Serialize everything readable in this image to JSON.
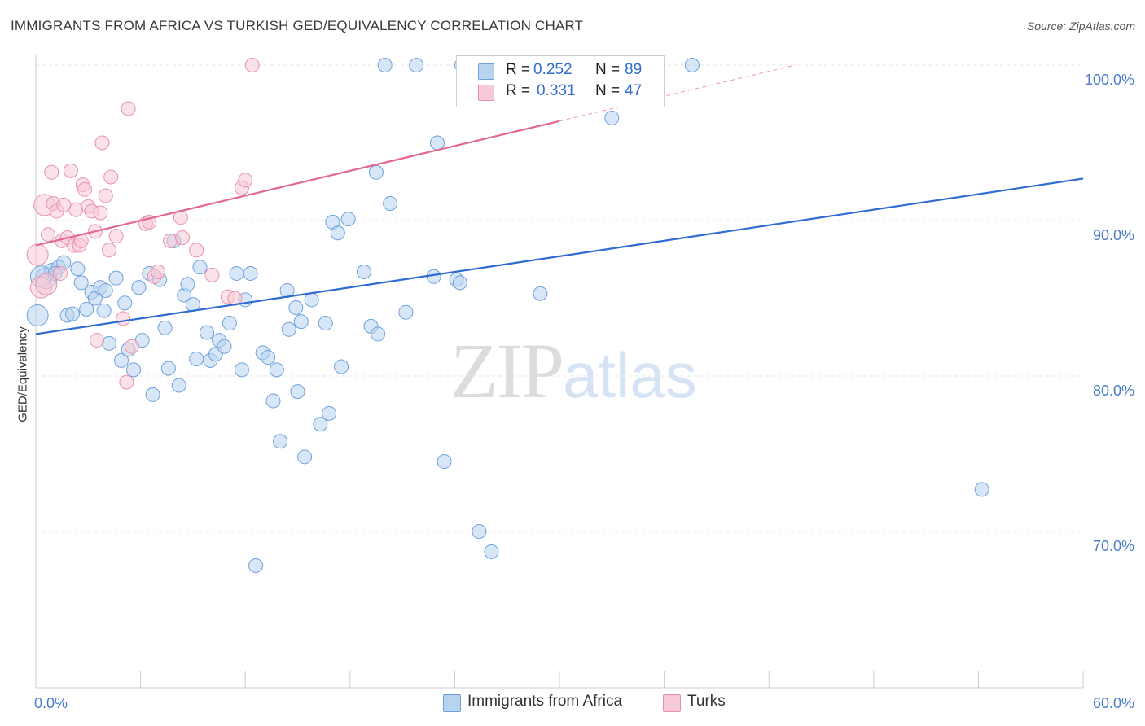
{
  "header": {
    "title": "IMMIGRANTS FROM AFRICA VS TURKISH GED/EQUIVALENCY CORRELATION CHART",
    "source": "Source: ZipAtlas.com"
  },
  "watermark": {
    "zip": "ZIP",
    "atlas": "atlas"
  },
  "legend": {
    "rows": [
      {
        "r_label": "R =",
        "r_value": "0.252",
        "n_label": "N =",
        "n_value": "89",
        "color": "#b8d3f0",
        "border": "#6fa0dc"
      },
      {
        "r_label": "R =",
        "r_value": "0.331",
        "n_label": "N =",
        "n_value": "47",
        "color": "#f8c9d6",
        "border": "#e891ad"
      }
    ]
  },
  "bottom_legend": [
    {
      "label": "Immigrants from Africa",
      "color": "#b8d3f0",
      "border": "#6fa0dc"
    },
    {
      "label": "Turks",
      "color": "#f8c9d6",
      "border": "#e891ad"
    }
  ],
  "chart_data": {
    "type": "scatter",
    "title": "IMMIGRANTS FROM AFRICA VS TURKISH GED/EQUIVALENCY CORRELATION CHART",
    "xlabel": "",
    "ylabel": "GED/Equivalency",
    "xlim": [
      0,
      60
    ],
    "ylim": [
      60.5,
      102
    ],
    "x_tick_labels": [
      "0.0%",
      "60.0%"
    ],
    "y_ticks": [
      70,
      80,
      90,
      100
    ],
    "y_tick_labels": [
      "70.0%",
      "80.0%",
      "90.0%",
      "100.0%"
    ],
    "grid": true,
    "series": [
      {
        "name": "Immigrants from Africa",
        "color": "#6fa0dc",
        "fill": "#b8d3f0",
        "trend": {
          "x0": 0,
          "y0": 82.7,
          "x1": 60,
          "y1": 92.7,
          "color": "#2f6bd0"
        },
        "points": [
          [
            0.1,
            83.9
          ],
          [
            0.6,
            86.3
          ],
          [
            0.9,
            86.8
          ],
          [
            1.3,
            87.0
          ],
          [
            1.6,
            87.3
          ],
          [
            1.8,
            83.9
          ],
          [
            2.1,
            84.0
          ],
          [
            2.4,
            86.9
          ],
          [
            2.6,
            86.0
          ],
          [
            2.9,
            84.3
          ],
          [
            3.2,
            85.4
          ],
          [
            3.4,
            85.0
          ],
          [
            3.7,
            85.7
          ],
          [
            4.0,
            85.5
          ],
          [
            4.2,
            82.1
          ],
          [
            4.6,
            86.3
          ],
          [
            4.9,
            81.0
          ],
          [
            5.1,
            84.7
          ],
          [
            5.3,
            81.7
          ],
          [
            5.6,
            80.4
          ],
          [
            5.9,
            85.7
          ],
          [
            6.1,
            82.3
          ],
          [
            6.5,
            86.6
          ],
          [
            6.7,
            78.8
          ],
          [
            7.1,
            86.2
          ],
          [
            7.4,
            83.1
          ],
          [
            7.6,
            80.5
          ],
          [
            7.9,
            88.7
          ],
          [
            8.2,
            79.4
          ],
          [
            8.5,
            85.2
          ],
          [
            8.7,
            85.9
          ],
          [
            9.0,
            84.6
          ],
          [
            9.2,
            81.1
          ],
          [
            9.4,
            87.0
          ],
          [
            9.8,
            82.8
          ],
          [
            10.0,
            81.0
          ],
          [
            10.3,
            81.4
          ],
          [
            10.5,
            82.3
          ],
          [
            10.8,
            81.9
          ],
          [
            11.1,
            83.4
          ],
          [
            11.5,
            86.6
          ],
          [
            11.8,
            80.4
          ],
          [
            12.0,
            84.9
          ],
          [
            12.3,
            86.6
          ],
          [
            12.6,
            67.8
          ],
          [
            13.0,
            81.5
          ],
          [
            13.3,
            81.2
          ],
          [
            13.6,
            78.4
          ],
          [
            13.8,
            80.4
          ],
          [
            14.0,
            75.8
          ],
          [
            14.4,
            85.5
          ],
          [
            14.5,
            83.0
          ],
          [
            14.9,
            84.4
          ],
          [
            15.2,
            83.5
          ],
          [
            15.4,
            74.8
          ],
          [
            15.8,
            84.9
          ],
          [
            16.3,
            76.9
          ],
          [
            16.6,
            83.4
          ],
          [
            16.8,
            77.6
          ],
          [
            17.0,
            89.9
          ],
          [
            17.3,
            89.2
          ],
          [
            17.5,
            80.6
          ],
          [
            17.9,
            90.1
          ],
          [
            18.8,
            86.7
          ],
          [
            19.2,
            83.2
          ],
          [
            19.5,
            93.1
          ],
          [
            19.6,
            82.7
          ],
          [
            20.0,
            100.0
          ],
          [
            20.3,
            91.1
          ],
          [
            21.2,
            84.1
          ],
          [
            21.8,
            100.0
          ],
          [
            22.8,
            86.4
          ],
          [
            23.0,
            95.0
          ],
          [
            23.4,
            74.5
          ],
          [
            24.1,
            86.2
          ],
          [
            24.3,
            86.0
          ],
          [
            24.4,
            100.0
          ],
          [
            25.4,
            70.0
          ],
          [
            26.1,
            68.7
          ],
          [
            28.9,
            85.3
          ],
          [
            30.5,
            100.0
          ],
          [
            33.0,
            96.6
          ],
          [
            34.2,
            100.0
          ],
          [
            37.6,
            100.0
          ],
          [
            54.2,
            72.7
          ],
          [
            0.3,
            86.4
          ],
          [
            1.1,
            86.6
          ],
          [
            3.9,
            84.2
          ],
          [
            15.0,
            79.0
          ]
        ]
      },
      {
        "name": "Turks",
        "color": "#e891ad",
        "fill": "#f8c9d6",
        "trend": {
          "x0": 0,
          "y0": 88.4,
          "x1": 30,
          "y1": 96.4,
          "dash_to_x": 43.5,
          "dash_to_y": 100.0,
          "color": "#e06892"
        },
        "points": [
          [
            0.1,
            87.8
          ],
          [
            0.3,
            85.7
          ],
          [
            0.5,
            91.0
          ],
          [
            0.7,
            89.1
          ],
          [
            0.9,
            93.1
          ],
          [
            1.0,
            91.1
          ],
          [
            1.2,
            90.6
          ],
          [
            1.4,
            86.6
          ],
          [
            1.5,
            88.7
          ],
          [
            1.8,
            88.9
          ],
          [
            2.0,
            93.2
          ],
          [
            2.2,
            88.4
          ],
          [
            2.3,
            90.7
          ],
          [
            2.5,
            88.4
          ],
          [
            2.7,
            92.3
          ],
          [
            2.8,
            92.0
          ],
          [
            3.0,
            90.9
          ],
          [
            3.2,
            90.6
          ],
          [
            3.4,
            89.3
          ],
          [
            3.5,
            82.3
          ],
          [
            3.7,
            90.5
          ],
          [
            3.8,
            95.0
          ],
          [
            4.0,
            91.6
          ],
          [
            4.2,
            88.1
          ],
          [
            4.3,
            92.8
          ],
          [
            4.6,
            89.0
          ],
          [
            5.0,
            83.7
          ],
          [
            5.2,
            79.6
          ],
          [
            5.3,
            97.2
          ],
          [
            5.5,
            81.9
          ],
          [
            6.3,
            89.8
          ],
          [
            6.5,
            89.9
          ],
          [
            6.8,
            86.4
          ],
          [
            7.0,
            86.7
          ],
          [
            7.7,
            88.7
          ],
          [
            8.3,
            90.2
          ],
          [
            8.4,
            88.9
          ],
          [
            9.2,
            88.1
          ],
          [
            10.1,
            86.5
          ],
          [
            11.0,
            85.1
          ],
          [
            11.4,
            85.0
          ],
          [
            11.8,
            92.1
          ],
          [
            12.0,
            92.6
          ],
          [
            12.4,
            100.0
          ],
          [
            1.6,
            91.0
          ],
          [
            0.6,
            85.9
          ],
          [
            2.6,
            88.7
          ]
        ]
      }
    ]
  }
}
